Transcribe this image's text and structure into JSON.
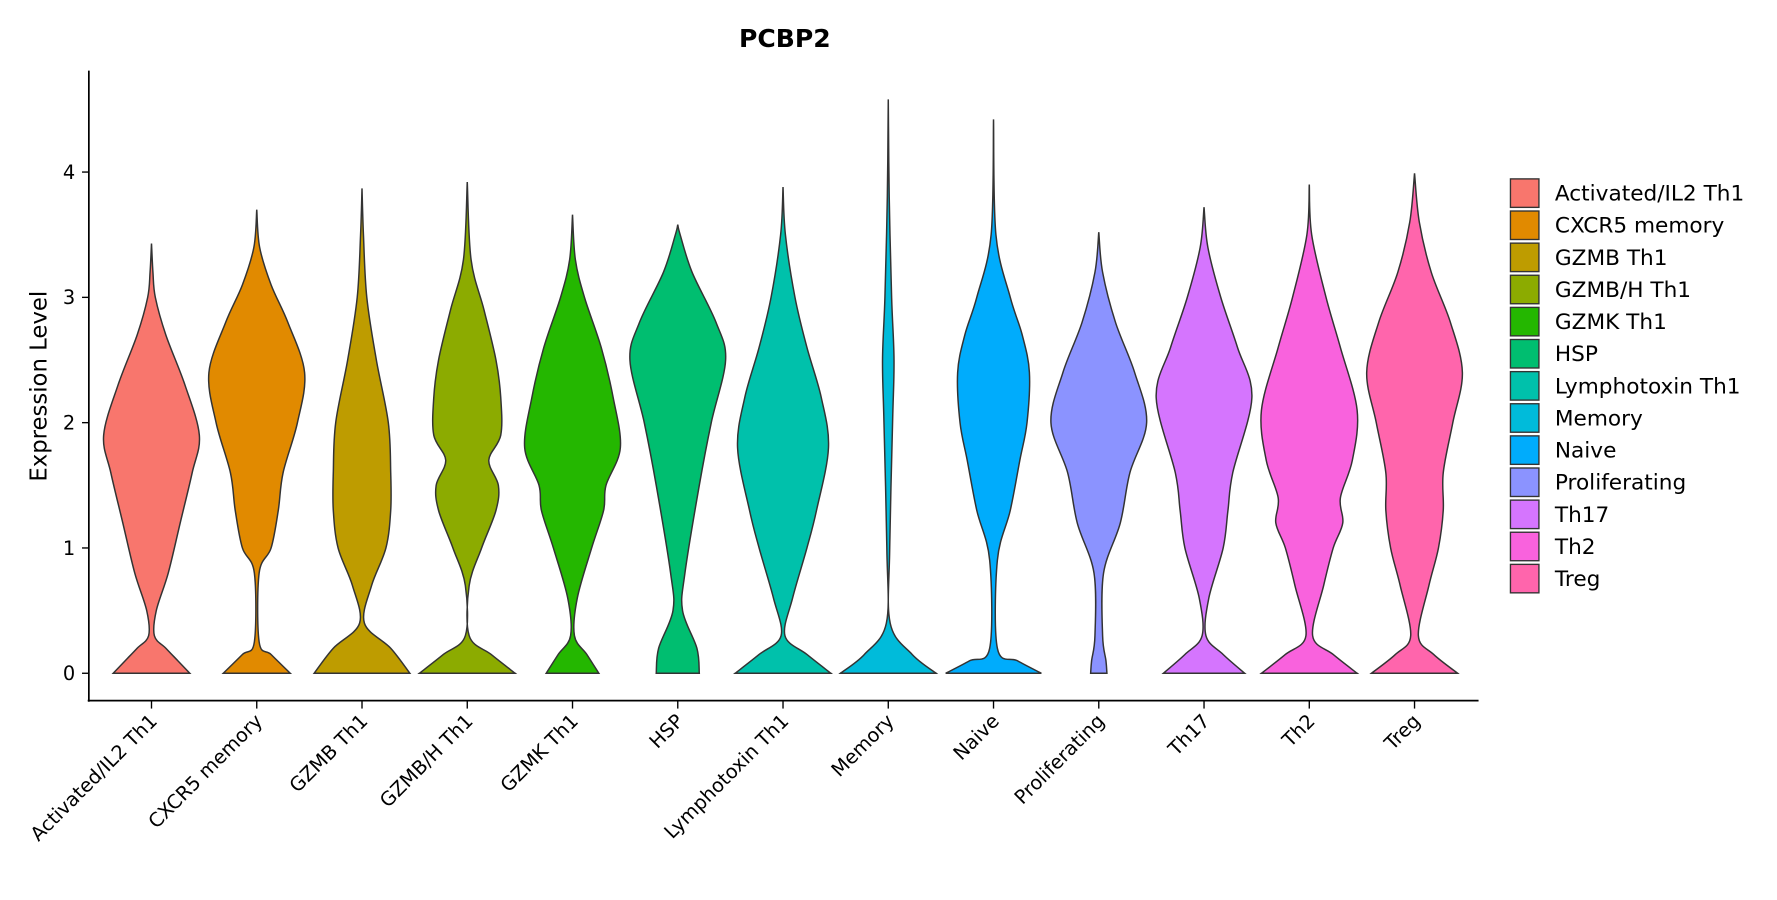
{
  "chart_data": {
    "type": "violin",
    "title": "PCBP2",
    "xlabel": "",
    "ylabel": "Expression Level",
    "ylim": [
      -0.22,
      4.8
    ],
    "yticks": [
      0,
      1,
      2,
      3,
      4
    ],
    "grid": false,
    "legend_position": "right",
    "categories": [
      "Activated/IL2 Th1",
      "CXCR5 memory",
      "GZMB Th1",
      "GZMB/H Th1",
      "GZMK Th1",
      "HSP",
      "Lymphotoxin Th1",
      "Memory",
      "Naive",
      "Proliferating",
      "Th17",
      "Th2",
      "Treg"
    ],
    "colors": [
      "#F8766D",
      "#E18A00",
      "#BE9C00",
      "#8CAB00",
      "#24B700",
      "#00BE70",
      "#00C1AB",
      "#00BBDA",
      "#00ACFC",
      "#8B93FF",
      "#D575FE",
      "#F962DD",
      "#FF65AC"
    ],
    "density_note": "relative density profiles as [expression, relative width]",
    "series": [
      {
        "name": "Activated/IL2 Th1",
        "max": 3.43,
        "profile": [
          [
            0,
            0.8
          ],
          [
            0.1,
            0.55
          ],
          [
            0.2,
            0.3
          ],
          [
            0.3,
            0.06
          ],
          [
            0.5,
            0.1
          ],
          [
            0.8,
            0.35
          ],
          [
            1.2,
            0.6
          ],
          [
            1.6,
            0.85
          ],
          [
            1.9,
            1.0
          ],
          [
            2.3,
            0.7
          ],
          [
            2.7,
            0.3
          ],
          [
            3.0,
            0.08
          ],
          [
            3.2,
            0.03
          ]
        ]
      },
      {
        "name": "CXCR5 memory",
        "max": 3.7,
        "profile": [
          [
            0,
            0.7
          ],
          [
            0.15,
            0.3
          ],
          [
            0.25,
            0.05
          ],
          [
            0.8,
            0.05
          ],
          [
            1.0,
            0.3
          ],
          [
            1.3,
            0.45
          ],
          [
            1.6,
            0.55
          ],
          [
            2.0,
            0.85
          ],
          [
            2.4,
            1.0
          ],
          [
            2.8,
            0.65
          ],
          [
            3.1,
            0.3
          ],
          [
            3.4,
            0.06
          ]
        ]
      },
      {
        "name": "GZMB Th1",
        "max": 3.87,
        "profile": [
          [
            0,
            1.0
          ],
          [
            0.2,
            0.6
          ],
          [
            0.4,
            0.05
          ],
          [
            0.7,
            0.2
          ],
          [
            1.0,
            0.5
          ],
          [
            1.3,
            0.6
          ],
          [
            1.6,
            0.6
          ],
          [
            2.0,
            0.55
          ],
          [
            2.5,
            0.3
          ],
          [
            3.0,
            0.1
          ],
          [
            3.5,
            0.03
          ]
        ]
      },
      {
        "name": "GZMB/H Th1",
        "max": 3.92,
        "profile": [
          [
            0,
            1.0
          ],
          [
            0.15,
            0.5
          ],
          [
            0.3,
            0.04
          ],
          [
            0.7,
            0.04
          ],
          [
            1.0,
            0.3
          ],
          [
            1.3,
            0.6
          ],
          [
            1.5,
            0.65
          ],
          [
            1.7,
            0.45
          ],
          [
            1.9,
            0.7
          ],
          [
            2.2,
            0.7
          ],
          [
            2.5,
            0.6
          ],
          [
            2.9,
            0.35
          ],
          [
            3.3,
            0.08
          ]
        ]
      },
      {
        "name": "GZMK Th1",
        "max": 3.66,
        "profile": [
          [
            0,
            0.55
          ],
          [
            0.15,
            0.3
          ],
          [
            0.3,
            0.04
          ],
          [
            0.6,
            0.1
          ],
          [
            1.0,
            0.4
          ],
          [
            1.3,
            0.65
          ],
          [
            1.5,
            0.7
          ],
          [
            1.8,
            1.0
          ],
          [
            2.2,
            0.85
          ],
          [
            2.6,
            0.6
          ],
          [
            3.0,
            0.25
          ],
          [
            3.3,
            0.06
          ]
        ]
      },
      {
        "name": "HSP",
        "max": 3.58,
        "profile": [
          [
            0,
            0.45
          ],
          [
            0.2,
            0.4
          ],
          [
            0.5,
            0.1
          ],
          [
            0.8,
            0.15
          ],
          [
            1.5,
            0.45
          ],
          [
            2.0,
            0.7
          ],
          [
            2.5,
            1.0
          ],
          [
            2.8,
            0.8
          ],
          [
            3.2,
            0.3
          ],
          [
            3.5,
            0.05
          ]
        ]
      },
      {
        "name": "Lymphotoxin Th1",
        "max": 3.88,
        "profile": [
          [
            0,
            1.0
          ],
          [
            0.15,
            0.5
          ],
          [
            0.3,
            0.04
          ],
          [
            0.6,
            0.2
          ],
          [
            1.0,
            0.5
          ],
          [
            1.3,
            0.7
          ],
          [
            1.8,
            0.95
          ],
          [
            2.2,
            0.8
          ],
          [
            2.6,
            0.5
          ],
          [
            3.0,
            0.25
          ],
          [
            3.5,
            0.05
          ]
        ]
      },
      {
        "name": "Memory",
        "max": 4.58,
        "profile": [
          [
            0,
            1.0
          ],
          [
            0.15,
            0.5
          ],
          [
            0.4,
            0.04
          ],
          [
            1.0,
            0.03
          ],
          [
            2.0,
            0.09
          ],
          [
            2.5,
            0.12
          ],
          [
            3.0,
            0.07
          ],
          [
            3.8,
            0.02
          ]
        ]
      },
      {
        "name": "Naive",
        "max": 4.42,
        "profile": [
          [
            0,
            1.0
          ],
          [
            0.1,
            0.5
          ],
          [
            0.2,
            0.08
          ],
          [
            0.9,
            0.08
          ],
          [
            1.3,
            0.35
          ],
          [
            1.7,
            0.55
          ],
          [
            2.0,
            0.7
          ],
          [
            2.4,
            0.75
          ],
          [
            2.7,
            0.6
          ],
          [
            3.0,
            0.35
          ],
          [
            3.5,
            0.05
          ]
        ]
      },
      {
        "name": "Proliferating",
        "max": 3.52,
        "profile": [
          [
            0,
            0.17
          ],
          [
            0.1,
            0.15
          ],
          [
            0.3,
            0.08
          ],
          [
            0.8,
            0.1
          ],
          [
            1.2,
            0.45
          ],
          [
            1.6,
            0.65
          ],
          [
            2.0,
            1.0
          ],
          [
            2.4,
            0.75
          ],
          [
            2.8,
            0.35
          ],
          [
            3.2,
            0.08
          ]
        ]
      },
      {
        "name": "Th17",
        "max": 3.72,
        "profile": [
          [
            0,
            0.85
          ],
          [
            0.15,
            0.4
          ],
          [
            0.3,
            0.04
          ],
          [
            0.6,
            0.1
          ],
          [
            1.0,
            0.4
          ],
          [
            1.3,
            0.5
          ],
          [
            1.6,
            0.6
          ],
          [
            2.2,
            1.0
          ],
          [
            2.6,
            0.7
          ],
          [
            3.0,
            0.35
          ],
          [
            3.4,
            0.08
          ]
        ]
      },
      {
        "name": "Th2",
        "max": 3.9,
        "profile": [
          [
            0,
            1.0
          ],
          [
            0.15,
            0.5
          ],
          [
            0.3,
            0.07
          ],
          [
            0.7,
            0.3
          ],
          [
            1.0,
            0.5
          ],
          [
            1.2,
            0.7
          ],
          [
            1.4,
            0.65
          ],
          [
            1.7,
            0.9
          ],
          [
            2.1,
            1.0
          ],
          [
            2.6,
            0.65
          ],
          [
            3.0,
            0.35
          ],
          [
            3.5,
            0.05
          ]
        ]
      },
      {
        "name": "Treg",
        "max": 3.99,
        "profile": [
          [
            0,
            0.9
          ],
          [
            0.15,
            0.4
          ],
          [
            0.3,
            0.08
          ],
          [
            0.7,
            0.3
          ],
          [
            1.0,
            0.5
          ],
          [
            1.3,
            0.6
          ],
          [
            1.6,
            0.6
          ],
          [
            2.0,
            0.8
          ],
          [
            2.4,
            1.0
          ],
          [
            2.8,
            0.75
          ],
          [
            3.2,
            0.35
          ],
          [
            3.6,
            0.1
          ]
        ]
      }
    ]
  }
}
